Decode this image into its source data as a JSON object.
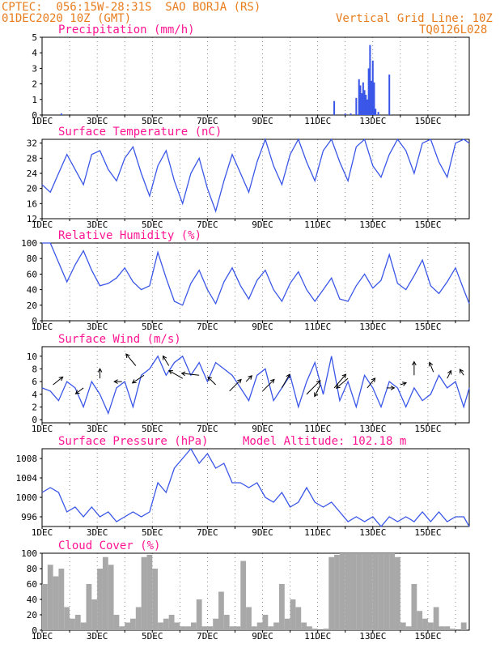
{
  "header": {
    "line1": "CPTEC:  056:15W-28:31S  SAO BORJA (RS)",
    "line2": "01DEC2020 10Z (GMT)",
    "grid_line": "Vertical Grid Line: 10Z",
    "code": "TQ0126L028"
  },
  "x_labels": [
    "1DEC",
    "3DEC",
    "5DEC",
    "7DEC",
    "9DEC",
    "11DEC",
    "13DEC",
    "15DEC"
  ],
  "colors": {
    "header": "#e87d1e",
    "title": "#ff1493",
    "series": "#3a56e8",
    "cloud": "#a8a8a8"
  },
  "chart_data": [
    {
      "type": "bar",
      "title": "Precipitation (mm/h)",
      "y_ticks": [
        0,
        1,
        2,
        3,
        4,
        5
      ],
      "ylim": [
        0,
        5
      ],
      "xlim_days": [
        0,
        15.5
      ],
      "x": [
        0.7,
        10.6,
        11.0,
        11.2,
        11.4,
        11.5,
        11.55,
        11.6,
        11.65,
        11.7,
        11.75,
        11.8,
        11.85,
        11.9,
        11.95,
        12.0,
        12.05,
        12.1,
        12.2,
        12.6
      ],
      "values": [
        0.1,
        0.9,
        0.1,
        0.1,
        1.1,
        2.3,
        1.9,
        1.4,
        2.1,
        1.6,
        1.3,
        1.0,
        3.0,
        4.5,
        2.2,
        3.5,
        2.1,
        0.4,
        0.2,
        2.6
      ]
    },
    {
      "type": "line",
      "title": "Surface Temperature (nC)",
      "y_ticks": [
        12,
        16,
        20,
        24,
        28,
        32
      ],
      "ylim": [
        12,
        33
      ],
      "x": [
        0,
        0.3,
        0.6,
        0.9,
        1.2,
        1.5,
        1.8,
        2.1,
        2.4,
        2.7,
        3.0,
        3.3,
        3.6,
        3.9,
        4.2,
        4.5,
        4.8,
        5.1,
        5.4,
        5.7,
        6.0,
        6.3,
        6.6,
        6.9,
        7.2,
        7.5,
        7.8,
        8.1,
        8.4,
        8.7,
        9.0,
        9.3,
        9.6,
        9.9,
        10.2,
        10.5,
        10.8,
        11.1,
        11.4,
        11.7,
        12.0,
        12.3,
        12.6,
        12.9,
        13.2,
        13.5,
        13.8,
        14.1,
        14.4,
        14.7,
        15.0,
        15.3,
        15.5
      ],
      "values": [
        21,
        19,
        24,
        29,
        25,
        21,
        29,
        30,
        25,
        22,
        28,
        31,
        24,
        18,
        26,
        30,
        22,
        16,
        24,
        28,
        20,
        14,
        22,
        29,
        24,
        19,
        27,
        33,
        26,
        21,
        29,
        33,
        27,
        22,
        30,
        33,
        27,
        22,
        31,
        33,
        26,
        23,
        29,
        33,
        30,
        24,
        32,
        33,
        27,
        23,
        32,
        33,
        32
      ]
    },
    {
      "type": "line",
      "title": "Relative Humidity (%)",
      "y_ticks": [
        0,
        20,
        40,
        60,
        80,
        100
      ],
      "ylim": [
        0,
        100
      ],
      "x": [
        0,
        0.3,
        0.6,
        0.9,
        1.2,
        1.5,
        1.8,
        2.1,
        2.4,
        2.7,
        3.0,
        3.3,
        3.6,
        3.9,
        4.2,
        4.5,
        4.8,
        5.1,
        5.4,
        5.7,
        6.0,
        6.3,
        6.6,
        6.9,
        7.2,
        7.5,
        7.8,
        8.1,
        8.4,
        8.7,
        9.0,
        9.3,
        9.6,
        9.9,
        10.2,
        10.5,
        10.8,
        11.1,
        11.4,
        11.7,
        12.0,
        12.3,
        12.6,
        12.9,
        13.2,
        13.5,
        13.8,
        14.1,
        14.4,
        14.7,
        15.0,
        15.3,
        15.5
      ],
      "values": [
        100,
        100,
        75,
        50,
        72,
        90,
        65,
        45,
        48,
        55,
        68,
        50,
        40,
        45,
        88,
        55,
        25,
        20,
        48,
        65,
        40,
        22,
        50,
        68,
        45,
        28,
        52,
        65,
        40,
        25,
        48,
        63,
        40,
        25,
        40,
        55,
        28,
        25,
        45,
        60,
        42,
        52,
        85,
        48,
        40,
        58,
        78,
        45,
        35,
        50,
        68,
        40,
        22
      ]
    },
    {
      "type": "line",
      "title": "Surface Wind (m/s)",
      "y_ticks": [
        0,
        2,
        4,
        6,
        8,
        10
      ],
      "ylim": [
        -0.5,
        11.5
      ],
      "x": [
        0,
        0.3,
        0.6,
        0.9,
        1.2,
        1.5,
        1.8,
        2.1,
        2.4,
        2.7,
        3.0,
        3.3,
        3.6,
        3.9,
        4.2,
        4.5,
        4.8,
        5.1,
        5.4,
        5.7,
        6.0,
        6.3,
        6.6,
        6.9,
        7.2,
        7.5,
        7.8,
        8.1,
        8.4,
        8.7,
        9.0,
        9.3,
        9.6,
        9.9,
        10.2,
        10.5,
        10.8,
        11.1,
        11.4,
        11.7,
        12.0,
        12.3,
        12.6,
        12.9,
        13.2,
        13.5,
        13.8,
        14.1,
        14.4,
        14.7,
        15.0,
        15.3,
        15.5
      ],
      "values": [
        5,
        4.5,
        3,
        6,
        5,
        2,
        6,
        4,
        1,
        5,
        6,
        2,
        7,
        8,
        10,
        7,
        9,
        10,
        7,
        9,
        6,
        9,
        8,
        7,
        5,
        3,
        7,
        8,
        3,
        5,
        7,
        2,
        6,
        9,
        4,
        10,
        3,
        6,
        2,
        7,
        5,
        2,
        6,
        5,
        2,
        5,
        3,
        4,
        7,
        5,
        6,
        2,
        5
      ],
      "arrows": [
        [
          0.4,
          5.5,
          0.5,
          0.4
        ],
        [
          1.5,
          5.0,
          -0.4,
          -0.3
        ],
        [
          2.1,
          6.5,
          0.0,
          0.5
        ],
        [
          2.9,
          6.0,
          -0.4,
          0.0
        ],
        [
          3.4,
          8.5,
          -0.5,
          0.6
        ],
        [
          3.7,
          7.0,
          -0.6,
          -0.4
        ],
        [
          4.6,
          8.5,
          -0.3,
          0.5
        ],
        [
          5.1,
          6.5,
          -0.7,
          0.4
        ],
        [
          5.7,
          7.0,
          -0.9,
          0.1
        ],
        [
          6.3,
          5.5,
          -0.4,
          0.4
        ],
        [
          6.8,
          4.5,
          0.6,
          0.6
        ],
        [
          7.4,
          6.0,
          0.3,
          0.3
        ],
        [
          8.0,
          4.5,
          0.6,
          0.6
        ],
        [
          8.7,
          5.0,
          0.4,
          0.7
        ],
        [
          9.6,
          4.0,
          0.7,
          0.7
        ],
        [
          10.1,
          5.5,
          -0.3,
          -0.6
        ],
        [
          10.6,
          5.0,
          0.6,
          0.7
        ],
        [
          11.1,
          6.5,
          -0.6,
          -0.5
        ],
        [
          11.8,
          5.0,
          0.4,
          0.5
        ],
        [
          12.5,
          5.0,
          0.4,
          0.0
        ],
        [
          13.0,
          5.5,
          0.3,
          0.1
        ],
        [
          13.5,
          7.0,
          0.0,
          0.7
        ],
        [
          14.2,
          7.5,
          -0.2,
          0.5
        ],
        [
          14.7,
          6.5,
          0.2,
          0.4
        ],
        [
          15.3,
          7.0,
          -0.2,
          0.3
        ]
      ]
    },
    {
      "type": "line",
      "title": "Surface Pressure (hPa)",
      "annotation": "Model Altitude: 102.18 m",
      "y_ticks": [
        996,
        1000,
        1004,
        1008
      ],
      "ylim": [
        994,
        1010
      ],
      "x": [
        0,
        0.3,
        0.6,
        0.9,
        1.2,
        1.5,
        1.8,
        2.1,
        2.4,
        2.7,
        3.0,
        3.3,
        3.6,
        3.9,
        4.2,
        4.5,
        4.8,
        5.1,
        5.4,
        5.7,
        6.0,
        6.3,
        6.6,
        6.9,
        7.2,
        7.5,
        7.8,
        8.1,
        8.4,
        8.7,
        9.0,
        9.3,
        9.6,
        9.9,
        10.2,
        10.5,
        10.8,
        11.1,
        11.4,
        11.7,
        12.0,
        12.3,
        12.6,
        12.9,
        13.2,
        13.5,
        13.8,
        14.1,
        14.4,
        14.7,
        15.0,
        15.3,
        15.5
      ],
      "values": [
        1001,
        1002,
        1001,
        997,
        998,
        996,
        998,
        996,
        997,
        995,
        996,
        997,
        996,
        997,
        1003,
        1001,
        1006,
        1008,
        1010,
        1007,
        1009,
        1006,
        1007,
        1003,
        1003,
        1002,
        1003,
        1000,
        999,
        1001,
        998,
        999,
        1002,
        999,
        998,
        999,
        997,
        995,
        996,
        995,
        996,
        994,
        996,
        995,
        996,
        995,
        997,
        995,
        997,
        995,
        996,
        996,
        994
      ]
    },
    {
      "type": "bar",
      "title": "Cloud Cover (%)",
      "y_ticks": [
        0,
        20,
        40,
        60,
        80,
        100
      ],
      "ylim": [
        0,
        100
      ],
      "x": [
        0.0,
        0.2,
        0.4,
        0.6,
        0.8,
        1.0,
        1.2,
        1.4,
        1.6,
        1.8,
        2.0,
        2.2,
        2.4,
        2.6,
        2.8,
        3.0,
        3.2,
        3.4,
        3.6,
        3.8,
        4.0,
        4.2,
        4.4,
        4.6,
        4.8,
        5.0,
        5.2,
        5.4,
        5.6,
        5.8,
        6.0,
        6.2,
        6.4,
        6.6,
        6.8,
        7.0,
        7.2,
        7.4,
        7.6,
        7.8,
        8.0,
        8.2,
        8.4,
        8.6,
        8.8,
        9.0,
        9.2,
        9.4,
        9.6,
        9.8,
        10.0,
        10.2,
        10.4,
        10.6,
        10.8,
        11.0,
        11.2,
        11.4,
        11.6,
        11.8,
        12.0,
        12.2,
        12.4,
        12.6,
        12.8,
        13.0,
        13.2,
        13.4,
        13.6,
        13.8,
        14.0,
        14.2,
        14.4,
        14.6,
        14.8,
        15.0,
        15.2,
        15.4
      ],
      "values": [
        60,
        85,
        70,
        80,
        30,
        15,
        20,
        10,
        60,
        40,
        80,
        95,
        85,
        20,
        5,
        10,
        15,
        30,
        95,
        98,
        80,
        10,
        15,
        20,
        10,
        5,
        5,
        10,
        40,
        5,
        5,
        15,
        50,
        20,
        5,
        5,
        90,
        30,
        5,
        10,
        20,
        5,
        10,
        60,
        15,
        40,
        30,
        10,
        5,
        2,
        0,
        2,
        95,
        98,
        100,
        100,
        100,
        100,
        100,
        100,
        100,
        100,
        100,
        100,
        95,
        10,
        5,
        60,
        25,
        15,
        10,
        30,
        5,
        5,
        2,
        0,
        10,
        0
      ]
    }
  ]
}
